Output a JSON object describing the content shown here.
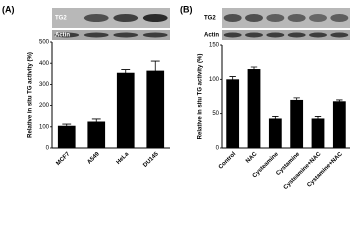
{
  "chart_data": [
    {
      "type": "bar",
      "panel_label": "(A)",
      "blot_labels": [
        "TG2",
        "Actin"
      ],
      "y_label": "Relative in situ TG activity (%)",
      "categories": [
        "MCF7",
        "A549",
        "HeLa",
        "DU145"
      ],
      "values": [
        105,
        125,
        355,
        365
      ],
      "errors": [
        8,
        12,
        15,
        45
      ],
      "color": "#000000",
      "ylim": [
        0,
        500
      ],
      "yticks": [
        0,
        100,
        200,
        300,
        400,
        500
      ]
    },
    {
      "type": "bar",
      "panel_label": "(B)",
      "blot_labels": [
        "TG2",
        "Actin"
      ],
      "y_label": "Relative in situ TG activity (%)",
      "categories": [
        "Control",
        "NAC",
        "Cysteamine",
        "Cystamine",
        "Cysteamine+NAC",
        "Cystamine+NAC"
      ],
      "values": [
        100,
        115,
        43,
        70,
        43,
        68
      ],
      "errors": [
        4,
        3,
        3,
        3,
        3,
        2
      ],
      "color": "#000000",
      "ylim": [
        0,
        150
      ],
      "yticks": [
        0,
        50,
        100,
        150
      ]
    }
  ]
}
